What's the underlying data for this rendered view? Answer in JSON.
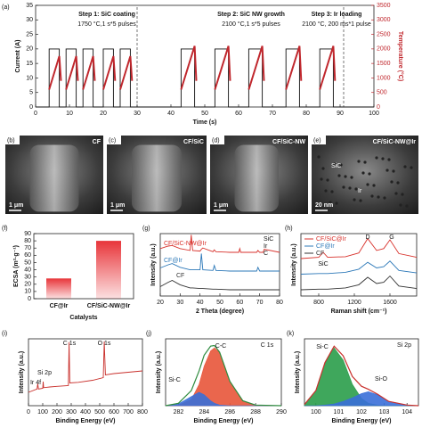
{
  "chart_data": [
    {
      "type": "line",
      "panel": "(a)",
      "xlabel": "Time (s)",
      "ylabel": "Current (A)",
      "y2label": "Temperature (°C)",
      "xlim": [
        0,
        100
      ],
      "xticks": [
        0,
        10,
        20,
        30,
        40,
        50,
        60,
        70,
        80,
        90,
        100
      ],
      "ylim": [
        0,
        35
      ],
      "yticks": [
        0,
        5,
        10,
        15,
        20,
        25,
        30,
        35
      ],
      "y2lim": [
        0,
        3500
      ],
      "y2ticks": [
        0,
        500,
        1000,
        1500,
        2000,
        2500,
        3000,
        3500
      ],
      "annotations": [
        "Step 1: SiC coating",
        "1750 °C,1 s*5 pulses",
        "Step 2: SiC NW growth",
        "2100 °C,1 s*5 pulses",
        "Step 3: Ir loading",
        "2100 °C, 200 ms*1 pulse"
      ],
      "series": [
        {
          "color": "#111111",
          "x": [
            0,
            4,
            4,
            7,
            7,
            9,
            9,
            12,
            12,
            14,
            14,
            17,
            17,
            20,
            20,
            23,
            23,
            25,
            25,
            28,
            28,
            43,
            43,
            47,
            47,
            53,
            53,
            57,
            57,
            63,
            63,
            67,
            67,
            74,
            74,
            78,
            78,
            84,
            84,
            88,
            88,
            100
          ],
          "values": [
            0,
            0,
            20,
            20,
            0,
            0,
            20,
            20,
            0,
            0,
            20,
            20,
            0,
            0,
            20,
            20,
            0,
            0,
            20,
            20,
            0,
            0,
            20,
            20,
            0,
            0,
            20,
            20,
            0,
            0,
            20,
            20,
            0,
            0,
            20,
            20,
            0,
            0,
            20,
            20,
            0,
            0
          ]
        },
        {
          "color": "#c0272d",
          "axis": "y2",
          "x": [
            4,
            7,
            7.5,
            8,
            9,
            12,
            12.5,
            13,
            14,
            17,
            17.5,
            18,
            20,
            23,
            23.5,
            24,
            25,
            28,
            28.5,
            29,
            43,
            47,
            47.5,
            48,
            53,
            57,
            57.5,
            58,
            63,
            67,
            67.5,
            68,
            74,
            78,
            78.5,
            79,
            84,
            88,
            88.5,
            89
          ],
          "values": [
            600,
            1750,
            900,
            null,
            600,
            1750,
            900,
            null,
            600,
            1750,
            900,
            null,
            600,
            1750,
            900,
            null,
            600,
            1750,
            900,
            null,
            600,
            2100,
            900,
            null,
            600,
            2100,
            900,
            null,
            600,
            2100,
            900,
            null,
            600,
            2100,
            900,
            null,
            600,
            2100,
            900,
            null
          ]
        }
      ]
    },
    {
      "type": "image",
      "panel": "(b)",
      "label": "CF",
      "scale_bar": "1 μm"
    },
    {
      "type": "image",
      "panel": "(c)",
      "label": "CF/SiC",
      "scale_bar": "1 μm"
    },
    {
      "type": "image",
      "panel": "(d)",
      "label": "CF/SiC-NW",
      "scale_bar": "1 μm"
    },
    {
      "type": "image",
      "panel": "(e)",
      "label": "CF/SiC-NW@Ir",
      "scale_bar": "20 nm",
      "annotations": [
        "SiC",
        "Ir"
      ]
    },
    {
      "type": "bar",
      "panel": "(f)",
      "xlabel": "Catalysts",
      "ylabel": "ECSA (m²·g⁻¹)",
      "categories": [
        "CF@Ir",
        "CF/SiC-NW@Ir"
      ],
      "values": [
        28,
        80
      ],
      "color": "#e8353a",
      "ylim": [
        0,
        90
      ],
      "yticks": [
        0,
        10,
        20,
        30,
        40,
        50,
        60,
        70,
        80,
        90
      ]
    },
    {
      "type": "line",
      "panel": "(g)",
      "xlabel": "2 Theta (degree)",
      "ylabel": "Intensity (a.u.)",
      "xlim": [
        20,
        80
      ],
      "xticks": [
        20,
        30,
        40,
        50,
        60,
        70,
        80
      ],
      "ylim": [
        0,
        10
      ],
      "annotations": [
        "SiC",
        "Ir",
        "C"
      ],
      "x": [
        20,
        24,
        26,
        30,
        35,
        35.6,
        36.3,
        40,
        40.7,
        41.4,
        46.5,
        47.2,
        48,
        55,
        59.5,
        60,
        60.5,
        68.5,
        69.1,
        70,
        71.7,
        72.3,
        80
      ],
      "series": [
        {
          "name": "CF/SiC-NW@Ir",
          "color": "#d8322c",
          "values": [
            7.6,
            8.0,
            8.1,
            7.6,
            7.3,
            9.8,
            7.3,
            7.2,
            7.5,
            7.7,
            7.1,
            7.4,
            7.1,
            7.0,
            7.0,
            7.6,
            7.0,
            7.0,
            7.3,
            7.0,
            7.0,
            7.5,
            7.0
          ]
        },
        {
          "name": "CF@Ir",
          "color": "#2c78b8",
          "values": [
            4.5,
            5.0,
            5.2,
            4.6,
            4.2,
            4.2,
            4.2,
            4.2,
            6.8,
            4.2,
            4.1,
            4.9,
            4.1,
            4.0,
            4.0,
            4.0,
            4.0,
            4.0,
            4.6,
            4.0,
            4.0,
            4.0,
            4.0
          ]
        },
        {
          "name": "CF",
          "color": "#333333",
          "values": [
            1.5,
            2.2,
            2.5,
            1.8,
            1.3,
            1.3,
            1.3,
            1.2,
            1.2,
            1.2,
            1.1,
            1.1,
            1.1,
            1.0,
            1.0,
            1.0,
            1.0,
            1.0,
            1.0,
            1.0,
            1.0,
            1.0,
            1.0
          ]
        }
      ]
    },
    {
      "type": "line",
      "panel": "(h)",
      "xlabel": "Raman shift (cm⁻¹)",
      "ylabel": "Intensity (a.u.)",
      "xlim": [
        600,
        1900
      ],
      "xticks": [
        800,
        1200,
        1600
      ],
      "ylim": [
        0,
        10
      ],
      "legend": "upper left",
      "annotations": [
        "D",
        "G",
        "SiC"
      ],
      "x": [
        600,
        800,
        850,
        900,
        1100,
        1250,
        1350,
        1450,
        1530,
        1600,
        1700,
        1900
      ],
      "series": [
        {
          "name": "CF/SiC@Ir",
          "color": "#d8322c",
          "values": [
            6.0,
            6.2,
            7.0,
            6.2,
            6.3,
            6.9,
            9.2,
            7.3,
            7.6,
            9.0,
            6.8,
            6.2
          ]
        },
        {
          "name": "CF@Ir",
          "color": "#2c78b8",
          "values": [
            3.5,
            3.6,
            3.6,
            3.6,
            3.8,
            4.3,
            5.4,
            4.5,
            4.7,
            5.6,
            4.1,
            3.7
          ]
        },
        {
          "name": "CF",
          "color": "#333333",
          "values": [
            1.0,
            1.1,
            1.1,
            1.1,
            1.3,
            1.8,
            3.0,
            2.0,
            2.2,
            3.2,
            1.6,
            1.2
          ]
        }
      ]
    },
    {
      "type": "line",
      "panel": "(i)",
      "xlabel": "Binding Energy (eV)",
      "ylabel": "Intensity (a.u.)",
      "xlim": [
        0,
        800
      ],
      "xticks": [
        0,
        100,
        200,
        300,
        400,
        500,
        600,
        700,
        800
      ],
      "ylim": [
        0,
        10
      ],
      "annotations": [
        "C 1s",
        "O 1s",
        "Si 2p",
        "Ir 4f"
      ],
      "x": [
        0,
        60,
        65,
        70,
        100,
        103,
        106,
        150,
        200,
        280,
        285,
        290,
        350,
        450,
        525,
        532,
        540,
        600,
        700,
        800
      ],
      "series": [
        {
          "color": "#c9302c",
          "values": [
            2.0,
            2.5,
            3.3,
            2.5,
            2.6,
            3.6,
            2.7,
            2.8,
            2.9,
            3.0,
            9.5,
            3.4,
            3.5,
            3.8,
            4.2,
            9.6,
            4.6,
            4.8,
            5.0,
            5.2
          ]
        }
      ]
    },
    {
      "type": "area",
      "panel": "(j)",
      "xlabel": "Binding Energy (eV)",
      "ylabel": "Intensity (a.u.)",
      "xlim": [
        281,
        290
      ],
      "xticks": [
        282,
        284,
        286,
        288,
        290
      ],
      "ylim": [
        0,
        11
      ],
      "annotations": [
        "C 1s"
      ],
      "x": [
        281,
        282,
        283,
        283.6,
        284,
        284.5,
        284.8,
        285.2,
        286,
        287,
        288,
        290
      ],
      "series": [
        {
          "name": "C-C",
          "color": "#e8553a",
          "fill": true,
          "values": [
            0,
            0.1,
            1.0,
            3.5,
            6.5,
            9.0,
            9.5,
            8.7,
            4.0,
            0.8,
            0.1,
            0
          ]
        },
        {
          "name": "Si-C",
          "color": "#3a6fd8",
          "fill": true,
          "values": [
            0,
            0.3,
            1.5,
            2.2,
            1.8,
            0.8,
            0.4,
            0.1,
            0,
            0,
            0,
            0
          ]
        },
        {
          "color": "#2e8b3e",
          "fill": false,
          "values": [
            0,
            0.4,
            2.5,
            5.7,
            8.3,
            9.8,
            9.9,
            8.8,
            4.0,
            0.8,
            0.1,
            0
          ]
        }
      ]
    },
    {
      "type": "area",
      "panel": "(k)",
      "xlabel": "Binding Energy (eV)",
      "ylabel": "Intensity (a.u.)",
      "xlim": [
        99.5,
        104.5
      ],
      "xticks": [
        100,
        101,
        102,
        103,
        104
      ],
      "ylim": [
        0,
        11
      ],
      "annotations": [
        "Si 2p"
      ],
      "x": [
        99.5,
        100,
        100.4,
        100.8,
        101.2,
        101.6,
        102,
        102.3,
        102.7,
        103.2,
        104,
        104.5
      ],
      "series": [
        {
          "name": "Si-C",
          "color": "#2a9d4a",
          "fill": true,
          "values": [
            0.2,
            2.5,
            7.0,
            9.5,
            7.5,
            3.5,
            1.2,
            0.4,
            0.1,
            0,
            0,
            0
          ]
        },
        {
          "name": "Si-O",
          "color": "#3a6fd8",
          "fill": true,
          "values": [
            0,
            0,
            0.1,
            0.3,
            0.7,
            1.3,
            2.0,
            2.3,
            1.8,
            0.7,
            0.1,
            0
          ]
        },
        {
          "color": "#c9302c",
          "fill": false,
          "values": [
            0.2,
            2.5,
            7.1,
            9.8,
            8.2,
            4.8,
            3.2,
            2.7,
            1.9,
            0.7,
            0.1,
            0
          ]
        }
      ]
    }
  ]
}
